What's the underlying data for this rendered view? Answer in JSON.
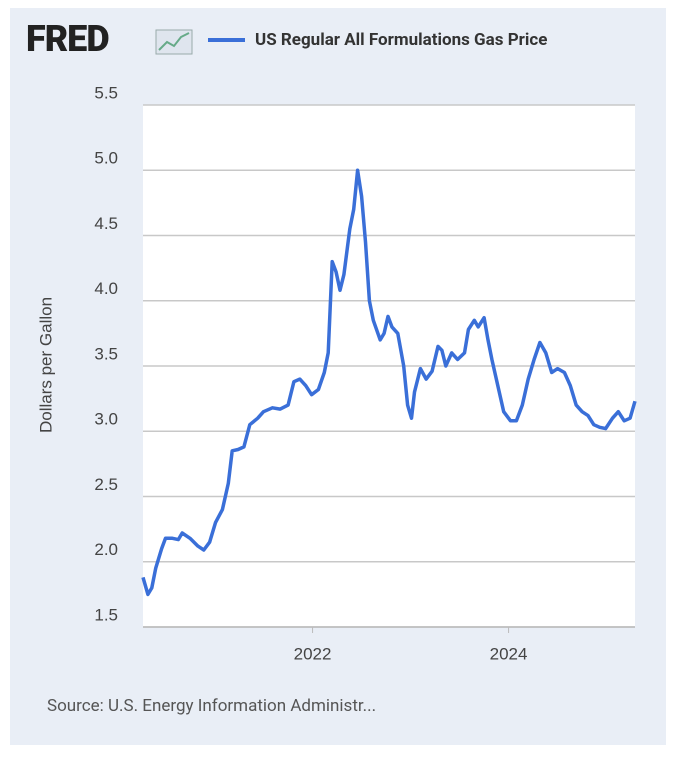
{
  "logo": "FRED",
  "chart_data": {
    "type": "line",
    "ylabel": "Dollars per Gallon",
    "source": "Source: U.S. Energy Information Administr...",
    "xlim": [
      2020.27,
      2025.29
    ],
    "xticks": [
      2022,
      2024
    ],
    "ylim": [
      1.5,
      5.5
    ],
    "yticks": [
      1.5,
      {
        "value": 2,
        "label": "2.0"
      },
      2.5,
      {
        "value": 3,
        "label": "3.0"
      },
      3.5,
      {
        "value": 4,
        "label": "4.0"
      },
      4.5,
      {
        "value": 5,
        "label": "5.0"
      },
      5.5
    ],
    "grid": true,
    "series": [
      {
        "name": "US Regular All Formulations Gas Price",
        "color": "#3a6fd8",
        "x": [
          2020.27,
          2020.32,
          2020.36,
          2020.4,
          2020.46,
          2020.5,
          2020.57,
          2020.63,
          2020.67,
          2020.75,
          2020.83,
          2020.89,
          2020.95,
          2021.01,
          2021.08,
          2021.14,
          2021.18,
          2021.24,
          2021.3,
          2021.36,
          2021.44,
          2021.5,
          2021.59,
          2021.67,
          2021.75,
          2021.81,
          2021.87,
          2021.93,
          2021.99,
          2022.06,
          2022.12,
          2022.16,
          2022.2,
          2022.24,
          2022.28,
          2022.32,
          2022.38,
          2022.42,
          2022.46,
          2022.5,
          2022.54,
          2022.58,
          2022.62,
          2022.69,
          2022.73,
          2022.77,
          2022.81,
          2022.87,
          2022.93,
          2022.97,
          2023.01,
          2023.04,
          2023.1,
          2023.16,
          2023.22,
          2023.28,
          2023.32,
          2023.36,
          2023.42,
          2023.48,
          2023.55,
          2023.59,
          2023.65,
          2023.69,
          2023.75,
          2023.79,
          2023.83,
          2023.89,
          2023.95,
          2024.02,
          2024.08,
          2024.14,
          2024.2,
          2024.26,
          2024.32,
          2024.38,
          2024.44,
          2024.5,
          2024.57,
          2024.63,
          2024.69,
          2024.75,
          2024.81,
          2024.87,
          2024.93,
          2024.99,
          2025.06,
          2025.12,
          2025.18,
          2025.24,
          2025.29
        ],
        "values": [
          1.88,
          1.75,
          1.8,
          1.95,
          2.1,
          2.18,
          2.18,
          2.17,
          2.22,
          2.18,
          2.12,
          2.09,
          2.15,
          2.3,
          2.4,
          2.6,
          2.85,
          2.86,
          2.88,
          3.05,
          3.1,
          3.15,
          3.18,
          3.17,
          3.2,
          3.38,
          3.4,
          3.35,
          3.28,
          3.32,
          3.45,
          3.6,
          4.3,
          4.22,
          4.08,
          4.2,
          4.55,
          4.7,
          5.0,
          4.8,
          4.45,
          4.0,
          3.85,
          3.7,
          3.75,
          3.88,
          3.8,
          3.75,
          3.5,
          3.2,
          3.1,
          3.3,
          3.48,
          3.4,
          3.46,
          3.65,
          3.62,
          3.5,
          3.6,
          3.55,
          3.6,
          3.78,
          3.85,
          3.8,
          3.87,
          3.7,
          3.55,
          3.35,
          3.15,
          3.08,
          3.08,
          3.2,
          3.4,
          3.55,
          3.68,
          3.6,
          3.45,
          3.48,
          3.45,
          3.35,
          3.2,
          3.15,
          3.12,
          3.05,
          3.03,
          3.02,
          3.1,
          3.15,
          3.08,
          3.1,
          3.23
        ]
      }
    ]
  }
}
